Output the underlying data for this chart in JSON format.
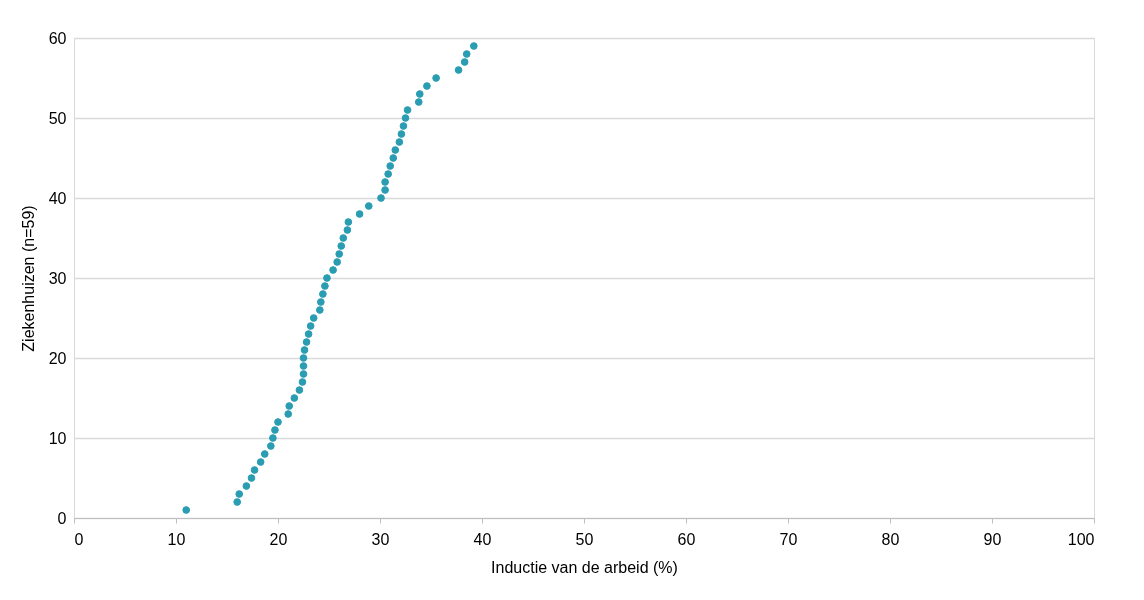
{
  "chart_data": {
    "type": "scatter",
    "xlabel": "Inductie van de arbeid (%)",
    "ylabel": "Ziekenhuizen (n=59)",
    "xlim": [
      0,
      100
    ],
    "xticks": [
      0,
      10,
      20,
      30,
      40,
      50,
      60,
      70,
      80,
      90,
      100
    ],
    "ylim": [
      0,
      60
    ],
    "yticks": [
      0,
      10,
      20,
      30,
      40,
      50,
      60
    ],
    "grid": "y",
    "marker": "circle",
    "series": [
      {
        "color": "#2a9db3",
        "x": [
          11.0,
          16.0,
          16.2,
          16.9,
          17.4,
          17.7,
          18.3,
          18.7,
          19.3,
          19.5,
          19.7,
          20.0,
          21.0,
          21.1,
          21.6,
          22.1,
          22.4,
          22.5,
          22.5,
          22.5,
          22.6,
          22.8,
          23.0,
          23.2,
          23.5,
          24.1,
          24.2,
          24.4,
          24.6,
          24.8,
          25.4,
          25.8,
          26.0,
          26.2,
          26.4,
          26.8,
          26.9,
          28.0,
          28.9,
          30.1,
          30.5,
          30.5,
          30.8,
          31.0,
          31.3,
          31.5,
          31.9,
          32.1,
          32.3,
          32.5,
          32.7,
          33.8,
          33.9,
          34.6,
          35.5,
          37.7,
          38.3,
          38.5,
          39.2
        ],
        "values": [
          1,
          2,
          3,
          4,
          5,
          6,
          7,
          8,
          9,
          10,
          11,
          12,
          13,
          14,
          15,
          16,
          17,
          18,
          19,
          20,
          21,
          22,
          23,
          24,
          25,
          26,
          27,
          28,
          29,
          30,
          31,
          32,
          33,
          34,
          35,
          36,
          37,
          38,
          39,
          40,
          41,
          42,
          43,
          44,
          45,
          46,
          47,
          48,
          49,
          50,
          51,
          52,
          53,
          54,
          55,
          56,
          57,
          58,
          59
        ]
      }
    ]
  }
}
